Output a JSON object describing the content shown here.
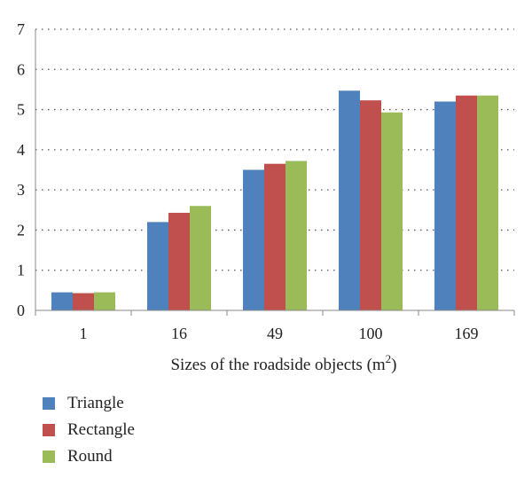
{
  "chart_data": {
    "type": "bar",
    "categories": [
      "1",
      "16",
      "49",
      "100",
      "169"
    ],
    "series": [
      {
        "name": "Triangle",
        "color": "#4F81BD",
        "values": [
          0.45,
          2.2,
          3.5,
          5.47,
          5.2
        ]
      },
      {
        "name": "Rectangle",
        "color": "#C0504D",
        "values": [
          0.43,
          2.43,
          3.65,
          5.23,
          5.35
        ]
      },
      {
        "name": "Round",
        "color": "#9BBB59",
        "values": [
          0.45,
          2.6,
          3.72,
          4.93,
          5.35
        ]
      }
    ],
    "xlabel": "Sizes of the roadside objects (m",
    "xlabel_sup": "2",
    "xlabel_end": ")",
    "ylabel": "",
    "ylim": [
      0,
      7
    ],
    "yticks": [
      "0",
      "1",
      "2",
      "3",
      "4",
      "5",
      "6",
      "7"
    ],
    "grid": "dotted-horizontal",
    "legend_position": "bottom-left"
  }
}
